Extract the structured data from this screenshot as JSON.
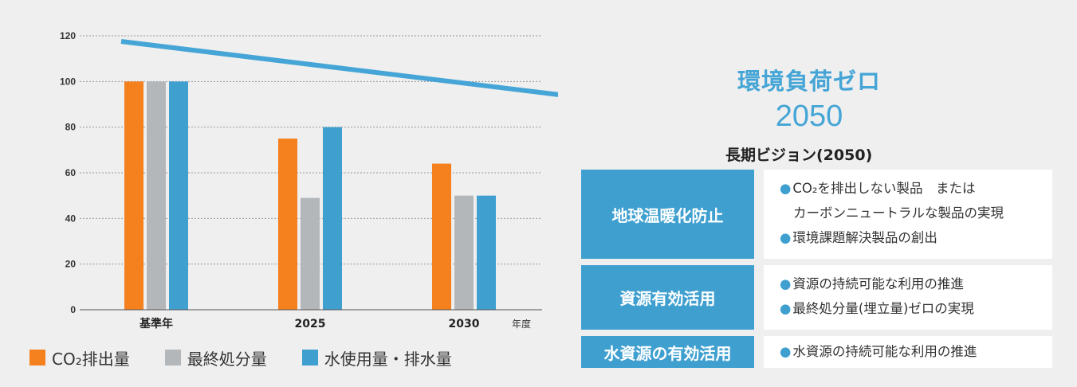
{
  "chart_data": {
    "type": "bar",
    "categories": [
      "基準年",
      "2025",
      "2030"
    ],
    "series": [
      {
        "name": "CO₂排出量",
        "color": "#f4801e",
        "values": [
          100,
          75,
          64
        ]
      },
      {
        "name": "最終処分量",
        "color": "#b4b7ba",
        "values": [
          100,
          49,
          50
        ]
      },
      {
        "name": "水使用量・排水量",
        "color": "#3fa0d0",
        "values": [
          100,
          80,
          50
        ]
      }
    ],
    "y_ticks": [
      "0",
      "20",
      "40",
      "60",
      "80",
      "100",
      "120"
    ],
    "ylim": [
      0,
      120
    ],
    "xlabel": "年度",
    "grid": true,
    "legend_position": "bottom",
    "arrow_color": "#45a5d6"
  },
  "goal": {
    "title": "環境負荷ゼロ",
    "year": "2050"
  },
  "vision": {
    "title": "長期ビジョン(2050)",
    "rows": [
      {
        "head": "地球温暖化防止",
        "items": [
          "CO₂を排出しない製品　または",
          "カーボンニュートラルな製品の実現",
          "環境課題解決製品の創出"
        ]
      },
      {
        "head": "資源有効活用",
        "items": [
          "資源の持続可能な利用の推進",
          "最終処分量(埋立量)ゼロの実現"
        ]
      },
      {
        "head": "水資源の有効活用",
        "items": [
          "水資源の持続可能な利用の推進"
        ]
      }
    ]
  }
}
